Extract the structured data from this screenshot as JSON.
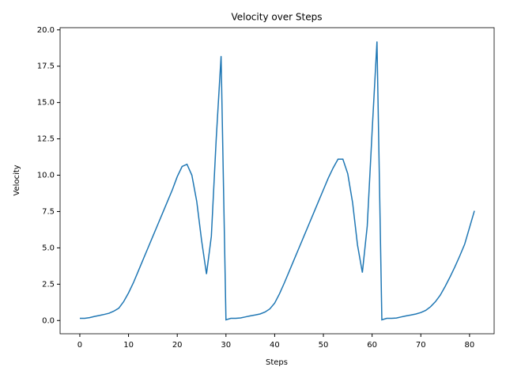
{
  "chart_data": {
    "type": "line",
    "title": "Velocity over Steps",
    "x_label": "Steps",
    "y_label": "Velocity",
    "x": [
      0,
      1,
      2,
      3,
      4,
      5,
      6,
      7,
      8,
      9,
      10,
      11,
      12,
      13,
      14,
      15,
      16,
      17,
      18,
      19,
      20,
      21,
      22,
      23,
      24,
      25,
      26,
      27,
      28,
      29,
      30,
      31,
      32,
      33,
      34,
      35,
      36,
      37,
      38,
      39,
      40,
      41,
      42,
      43,
      44,
      45,
      46,
      47,
      48,
      49,
      50,
      51,
      52,
      53,
      54,
      55,
      56,
      57,
      58,
      59,
      60,
      61,
      62,
      63,
      64,
      65,
      66,
      67,
      68,
      69,
      70,
      71,
      72,
      73,
      74,
      75,
      76,
      77,
      78,
      79,
      80,
      81
    ],
    "series": [
      {
        "name": "Velocity",
        "color": "#1f77b4",
        "values": [
          0.15,
          0.15,
          0.2,
          0.28,
          0.35,
          0.42,
          0.5,
          0.65,
          0.85,
          1.3,
          1.9,
          2.6,
          3.4,
          4.2,
          5.0,
          5.8,
          6.6,
          7.4,
          8.2,
          9.0,
          9.9,
          10.6,
          10.75,
          10.0,
          8.2,
          5.5,
          3.2,
          5.8,
          12.5,
          18.2,
          0.05,
          0.15,
          0.15,
          0.18,
          0.25,
          0.32,
          0.38,
          0.45,
          0.58,
          0.8,
          1.2,
          1.85,
          2.6,
          3.4,
          4.2,
          5.0,
          5.8,
          6.6,
          7.4,
          8.2,
          9.0,
          9.8,
          10.5,
          11.1,
          11.1,
          10.1,
          8.1,
          5.2,
          3.3,
          6.5,
          13.0,
          19.2,
          0.05,
          0.15,
          0.15,
          0.17,
          0.25,
          0.32,
          0.38,
          0.45,
          0.55,
          0.7,
          0.95,
          1.3,
          1.75,
          2.35,
          3.0,
          3.7,
          4.45,
          5.25,
          6.4,
          7.55
        ]
      }
    ],
    "xlim": [
      -4.05,
      85.05
    ],
    "ylim": [
      -0.91,
      20.15
    ],
    "xticks": [
      0,
      10,
      20,
      30,
      40,
      50,
      60,
      70,
      80
    ],
    "yticks": [
      {
        "value": 0,
        "label": "0.0"
      },
      {
        "value": 2.5,
        "label": "2.5"
      },
      {
        "value": 5,
        "label": "5.0"
      },
      {
        "value": 7.5,
        "label": "7.5"
      },
      {
        "value": 10,
        "label": "10.0"
      },
      {
        "value": 12.5,
        "label": "12.5"
      },
      {
        "value": 15,
        "label": "15.0"
      },
      {
        "value": 17.5,
        "label": "17.5"
      },
      {
        "value": 20,
        "label": "20.0"
      }
    ]
  }
}
